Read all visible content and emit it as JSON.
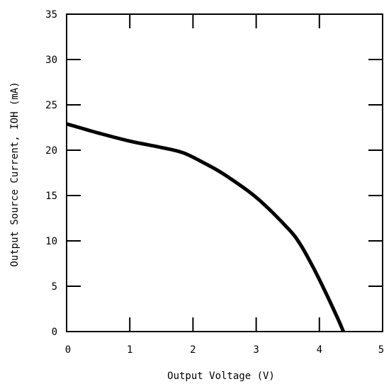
{
  "chart_data": {
    "type": "line",
    "title": "",
    "xlabel": "Output Voltage (V)",
    "ylabel": "Output Source Current, IOH (mA)",
    "xlim": [
      0,
      5
    ],
    "ylim": [
      0,
      35
    ],
    "x_ticks": [
      0,
      1,
      2,
      3,
      4,
      5
    ],
    "y_ticks": [
      0,
      5,
      10,
      15,
      20,
      25,
      30,
      35
    ],
    "x_tick_labels": [
      "0",
      "1",
      "2",
      "3",
      "4",
      "5"
    ],
    "y_tick_labels": [
      "0",
      "5",
      "10",
      "15",
      "20",
      "25",
      "30",
      "35"
    ],
    "grid": false,
    "legend": "none",
    "line_color": "#000000",
    "series": [
      {
        "x": [
          0,
          0.2,
          0.5,
          1.0,
          1.5,
          1.85,
          2.2,
          2.5,
          3.0,
          3.5,
          3.7,
          3.9,
          4.1,
          4.3,
          4.38
        ],
        "y": [
          22.9,
          22.5,
          21.9,
          21.0,
          20.3,
          19.7,
          18.5,
          17.3,
          14.8,
          11.4,
          9.6,
          7.1,
          4.3,
          1.3,
          0
        ]
      }
    ]
  }
}
